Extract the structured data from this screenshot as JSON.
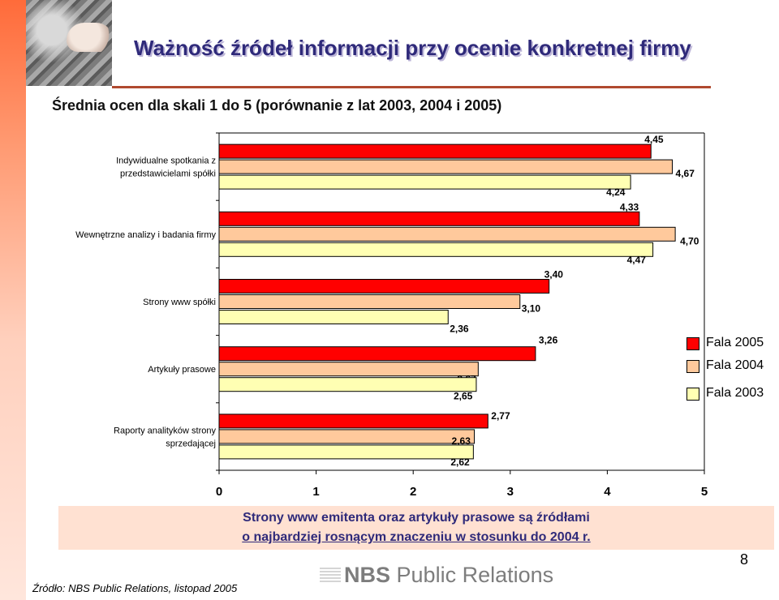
{
  "title": "Ważność źródeł informacji przy ocenie konkretnej firmy",
  "subtitle": "Średnia ocen dla skali 1 do 5 (porównanie z lat 2003, 2004 i 2005)",
  "legend": {
    "items": [
      {
        "label": "Fala 2005",
        "color": "#ff0000"
      },
      {
        "label": "Fala 2004",
        "color": "#ffc99c"
      },
      {
        "label": "Fala 2003",
        "color": "#ffffb3"
      }
    ]
  },
  "note": {
    "line1": "Strony www emitenta oraz artykuły prasowe są źródłami",
    "line2": "o najbardziej rosnącym znaczeniu w stosunku do 2004 r."
  },
  "logo": {
    "brand": "NBS",
    "rest": "Public Relations"
  },
  "page_number": "8",
  "source": "Źródło: NBS Public Relations, listopad 2005",
  "chart_data": {
    "type": "bar",
    "orientation": "horizontal",
    "categories": [
      "Indywidualne spotkania z przedstawicielami spółki",
      "Wewnętrzne analizy i badania firmy",
      "Strony www spółki",
      "Artykuły prasowe",
      "Raporty analityków strony sprzedającej"
    ],
    "category_lines": [
      [
        "Indywidualne spotkania z",
        "przedstawicielami spółki"
      ],
      [
        "Wewnętrzne analizy i badania firmy"
      ],
      [
        "Strony www spółki"
      ],
      [
        "Artykuły prasowe"
      ],
      [
        "Raporty analityków strony",
        "sprzedającej"
      ]
    ],
    "series": [
      {
        "name": "Fala 2005",
        "color": "#ff0000",
        "values": [
          4.45,
          4.33,
          3.4,
          3.26,
          2.77
        ],
        "labels": [
          "4,45",
          "4,33",
          "3,40",
          "3,26",
          "2,77"
        ]
      },
      {
        "name": "Fala 2004",
        "color": "#ffc99c",
        "values": [
          4.67,
          4.7,
          3.1,
          2.67,
          2.63
        ],
        "labels": [
          "4,67",
          "4,70",
          "3,10",
          "2,67",
          "2,63"
        ]
      },
      {
        "name": "Fala 2003",
        "color": "#ffffb3",
        "values": [
          4.24,
          4.47,
          2.36,
          2.65,
          2.62
        ],
        "labels": [
          "4,24",
          "4,47",
          "2,36",
          "2,65",
          "2,62"
        ]
      }
    ],
    "x_ticks": [
      "0",
      "1",
      "2",
      "3",
      "4",
      "5"
    ],
    "xlim": [
      0,
      5
    ],
    "legend_position": "right",
    "grid": false
  }
}
